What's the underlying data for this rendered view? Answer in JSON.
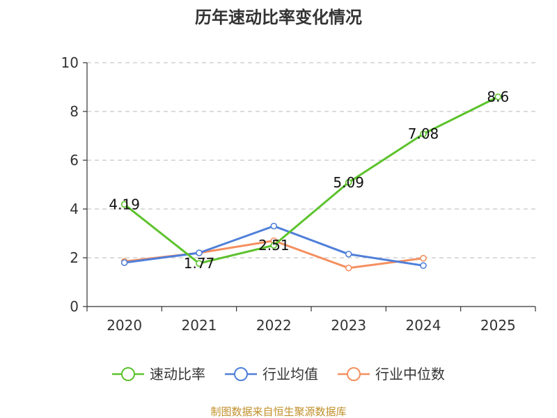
{
  "chart_data": {
    "type": "line",
    "title": "历年速动比率变化情况",
    "categories": [
      "2020",
      "2021",
      "2022",
      "2023",
      "2024",
      "2025"
    ],
    "ylim": [
      0,
      10
    ],
    "yticks": [
      0,
      2,
      4,
      6,
      8,
      10
    ],
    "grid": true,
    "legend_position": "bottom",
    "series": [
      {
        "name": "速动比率",
        "color": "#5cc22c",
        "values": [
          4.19,
          1.77,
          2.51,
          5.09,
          7.08,
          8.6
        ],
        "labels": [
          "4.19",
          "1.77",
          "2.51",
          "5.09",
          "7.08",
          "8.6"
        ]
      },
      {
        "name": "行业均值",
        "color": "#4f7fd9",
        "values": [
          1.8,
          2.2,
          3.3,
          2.15,
          1.68,
          null
        ]
      },
      {
        "name": "行业中位数",
        "color": "#f48f5f",
        "values": [
          1.85,
          2.2,
          2.7,
          1.58,
          1.98,
          null
        ]
      }
    ],
    "source": "制图数据来自恒生聚源数据库"
  }
}
